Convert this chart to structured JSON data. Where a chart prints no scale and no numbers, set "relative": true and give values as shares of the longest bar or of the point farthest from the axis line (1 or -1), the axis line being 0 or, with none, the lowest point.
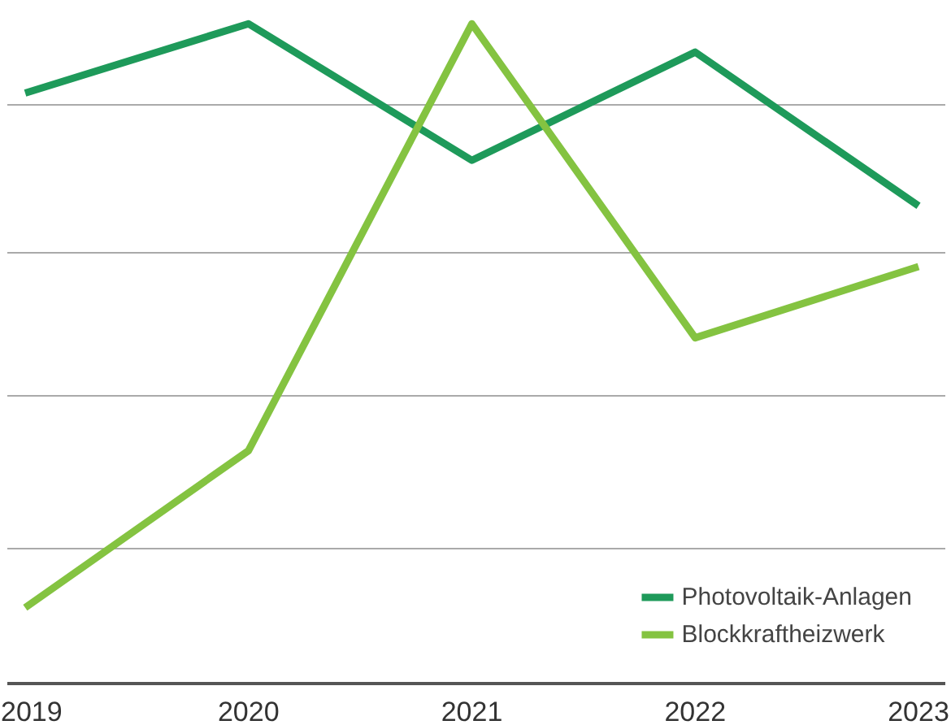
{
  "chart_data": {
    "type": "line",
    "relative": true,
    "categories": [
      "2019",
      "2020",
      "2021",
      "2022",
      "2023"
    ],
    "series": [
      {
        "name": "Photovoltaik-Anlagen",
        "color": "#1e9a5a",
        "values": [
          0.895,
          1,
          0.793,
          0.957,
          0.724
        ]
      },
      {
        "name": "Blockkraftheizwerk",
        "color": "#84c341",
        "values": [
          0.115,
          0.353,
          1,
          0.524,
          0.632
        ]
      }
    ],
    "grid": "y",
    "legend": "bottom right",
    "marker": "none",
    "line_style": "solid"
  }
}
